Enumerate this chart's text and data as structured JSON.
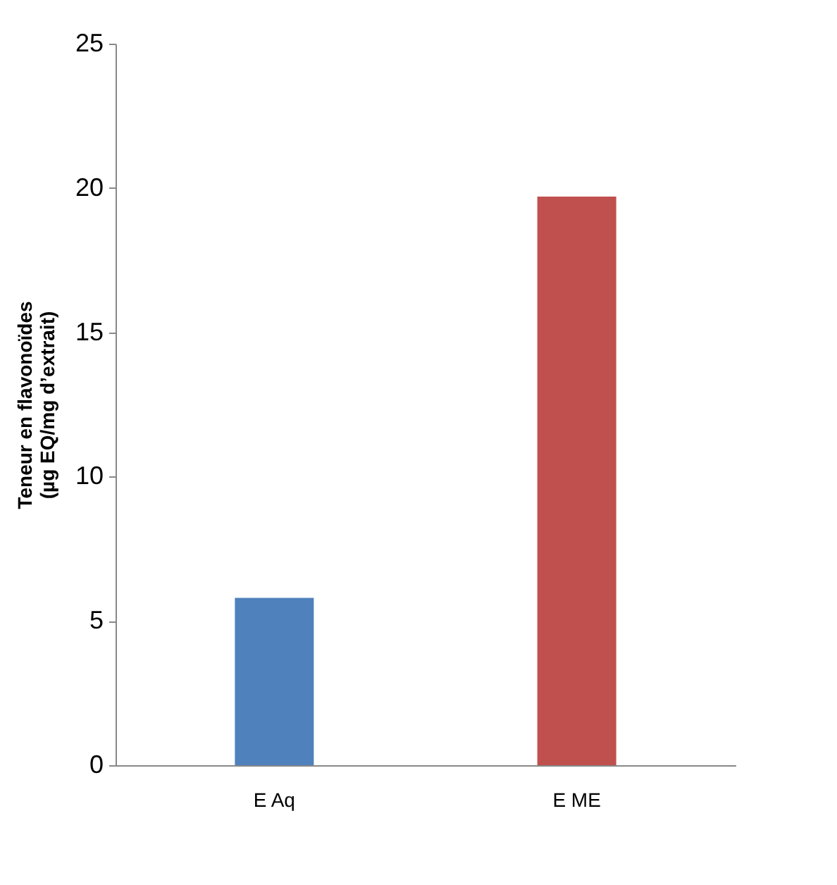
{
  "chart_data": {
    "type": "bar",
    "ylabel": "Teneur en flavonoïdes\n(µg EQ/mg d’extrait)",
    "categories": [
      "E Aq",
      "E ME"
    ],
    "values": [
      5.8,
      19.7
    ],
    "colors": [
      "#4f81bd",
      "#c0504d"
    ],
    "ylim": [
      0,
      25
    ],
    "yticks": [
      0,
      5,
      10,
      15,
      20,
      25
    ],
    "grid": false
  }
}
